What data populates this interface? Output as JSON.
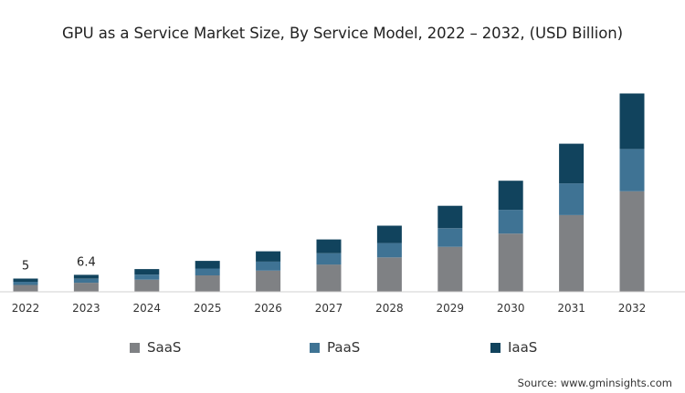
{
  "chart_data": {
    "type": "bar",
    "stacked": true,
    "title": "GPU as a Service Market Size, By Service Model, 2022 – 2032, (USD Billion)",
    "xlabel": "",
    "ylabel": "",
    "categories": [
      "2022",
      "2023",
      "2024",
      "2025",
      "2026",
      "2027",
      "2028",
      "2029",
      "2030",
      "2031",
      "2032"
    ],
    "series": [
      {
        "name": "SaaS",
        "color": "#7f8184",
        "values": [
          2.6,
          3.4,
          4.6,
          6.2,
          8.0,
          10.3,
          13.0,
          17.0,
          22.0,
          29.0,
          38.0
        ]
      },
      {
        "name": "PaaS",
        "color": "#3f7394",
        "values": [
          1.2,
          1.5,
          1.9,
          2.6,
          3.4,
          4.3,
          5.4,
          7.0,
          9.0,
          12.0,
          16.0
        ]
      },
      {
        "name": "IaaS",
        "color": "#11435d",
        "values": [
          1.2,
          1.5,
          2.1,
          2.9,
          3.9,
          5.2,
          6.6,
          8.5,
          11.0,
          15.0,
          21.0
        ]
      }
    ],
    "data_labels": [
      {
        "category": "2022",
        "text": "5"
      },
      {
        "category": "2023",
        "text": "6.4"
      }
    ],
    "ylim": [
      0,
      80
    ],
    "grid": false,
    "legend_position": "bottom"
  },
  "source_text": "Source: www.gminsights.com"
}
